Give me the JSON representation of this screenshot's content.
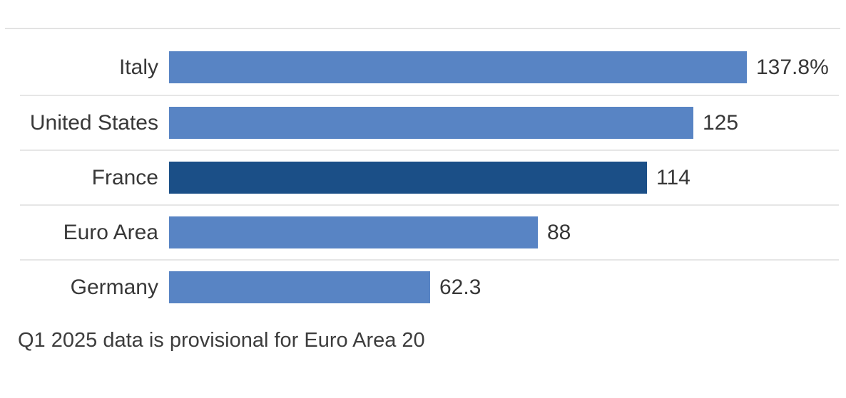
{
  "chart_data": {
    "type": "bar",
    "orientation": "horizontal",
    "categories": [
      "Italy",
      "United States",
      "France",
      "Euro Area",
      "Germany"
    ],
    "values": [
      137.8,
      125,
      114,
      88,
      62.3
    ],
    "value_labels": [
      "137.8%",
      "125",
      "114",
      "88",
      "62.3"
    ],
    "highlighted_category": "France",
    "xlim": [
      0,
      137.8
    ],
    "unit_suffix_on_max": "%",
    "grid": "row-separators",
    "legend": "none",
    "footnote": "Q1 2025 data is provisional for Euro Area 20",
    "colors": {
      "bar": "#5884c4",
      "bar_highlight": "#1b4f87",
      "separator": "#e6e6e6",
      "top_rule": "#e3e3e3",
      "text": "#383838"
    }
  }
}
